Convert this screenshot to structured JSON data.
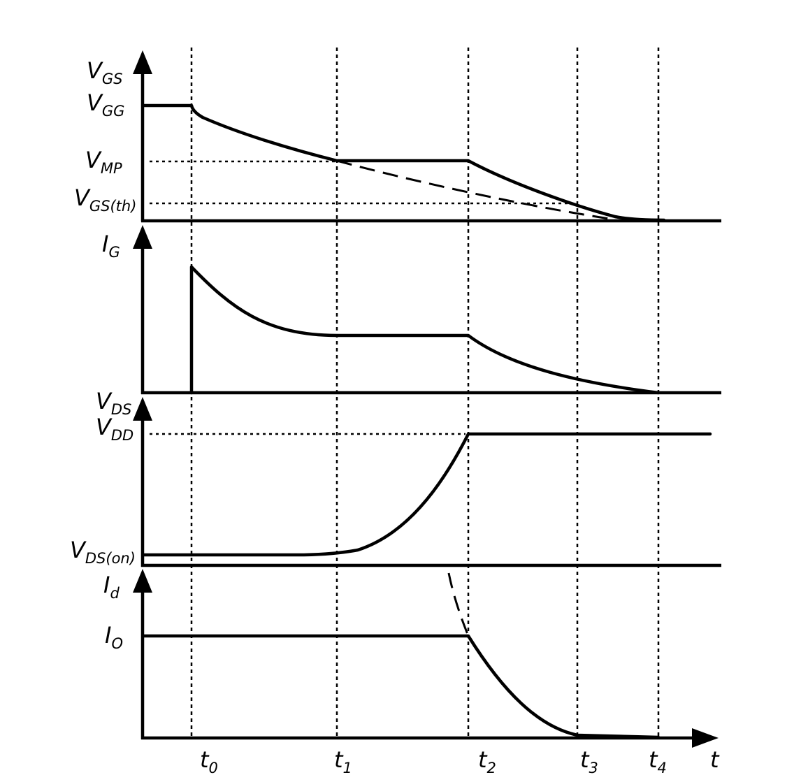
{
  "panels": {
    "vgs": {
      "axis_label": {
        "main": "V",
        "sub": "GS"
      },
      "levels": [
        {
          "main": "V",
          "sub": "GG"
        },
        {
          "main": "V",
          "sub": "MP"
        },
        {
          "main": "V",
          "sub": "GS(th)"
        }
      ]
    },
    "ig": {
      "axis_label": {
        "main": "I",
        "sub": "G"
      }
    },
    "vds": {
      "axis_label": {
        "main": "V",
        "sub": "DS"
      },
      "levels": [
        {
          "main": "V",
          "sub": "DD"
        },
        {
          "main": "V",
          "sub": "DS(on)"
        }
      ]
    },
    "id": {
      "axis_label": {
        "main": "I",
        "sub": "d"
      },
      "levels": [
        {
          "main": "I",
          "sub": "O"
        }
      ]
    }
  },
  "time_axis": {
    "label": "t",
    "markers": [
      {
        "main": "t",
        "sub": "0"
      },
      {
        "main": "t",
        "sub": "1"
      },
      {
        "main": "t",
        "sub": "2"
      },
      {
        "main": "t",
        "sub": "3"
      },
      {
        "main": "t",
        "sub": "4"
      }
    ]
  }
}
